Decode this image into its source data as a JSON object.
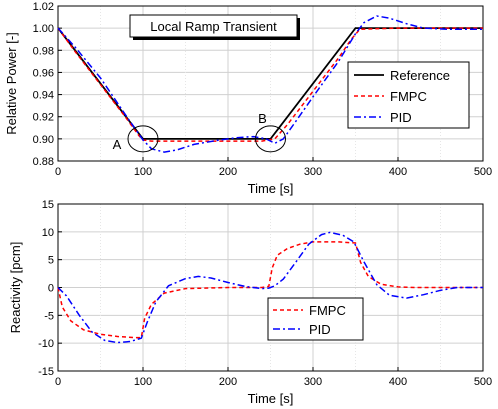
{
  "chart_data": [
    {
      "type": "line",
      "title": "Local Ramp Transient",
      "xlabel": "Time [s]",
      "ylabel": "Relative Power [-]",
      "xlim": [
        0,
        500
      ],
      "ylim": [
        0.88,
        1.02
      ],
      "xticks": [
        0,
        100,
        200,
        300,
        400,
        500
      ],
      "yticks": [
        0.88,
        0.9,
        0.92,
        0.94,
        0.96,
        0.98,
        1.0,
        1.02
      ],
      "grid": true,
      "legend": "right",
      "annotations": [
        {
          "text": "A",
          "x": 100,
          "y": 0.9
        },
        {
          "text": "B",
          "x": 250,
          "y": 0.9
        }
      ],
      "series": [
        {
          "name": "Reference",
          "color": "#000000",
          "style": "solid",
          "x": [
            0,
            100,
            250,
            350,
            500
          ],
          "y": [
            1.0,
            0.9,
            0.9,
            1.0,
            1.0
          ]
        },
        {
          "name": "FMPC",
          "color": "#ff0000",
          "style": "dashed",
          "x": [
            0,
            20,
            50,
            80,
            95,
            100,
            110,
            150,
            200,
            240,
            255,
            270,
            300,
            330,
            345,
            355,
            400,
            450,
            500
          ],
          "y": [
            1.0,
            0.979,
            0.949,
            0.919,
            0.903,
            0.899,
            0.898,
            0.898,
            0.898,
            0.898,
            0.9,
            0.913,
            0.943,
            0.973,
            0.99,
            0.999,
            1.0,
            1.0,
            1.0
          ]
        },
        {
          "name": "PID",
          "color": "#0000ff",
          "style": "dashdot",
          "x": [
            0,
            20,
            50,
            80,
            100,
            110,
            125,
            140,
            160,
            190,
            210,
            230,
            245,
            255,
            265,
            280,
            300,
            330,
            350,
            360,
            375,
            390,
            410,
            430,
            460,
            500
          ],
          "y": [
            1.0,
            0.983,
            0.955,
            0.921,
            0.899,
            0.891,
            0.888,
            0.89,
            0.895,
            0.899,
            0.901,
            0.902,
            0.9,
            0.896,
            0.9,
            0.916,
            0.938,
            0.97,
            0.995,
            1.005,
            1.011,
            1.009,
            1.004,
            1.0,
            0.999,
            0.999
          ]
        }
      ]
    },
    {
      "type": "line",
      "xlabel": "Time [s]",
      "ylabel": "Reactivity [pcm]",
      "xlim": [
        0,
        500
      ],
      "ylim": [
        -15,
        15
      ],
      "xticks": [
        0,
        100,
        200,
        300,
        400,
        500
      ],
      "yticks": [
        -15,
        -10,
        -5,
        0,
        5,
        10,
        15
      ],
      "grid": true,
      "legend": "bottom-center",
      "series": [
        {
          "name": "FMPC",
          "color": "#ff0000",
          "style": "dashed",
          "x": [
            0,
            5,
            15,
            30,
            50,
            70,
            90,
            98,
            102,
            110,
            125,
            150,
            200,
            240,
            248,
            252,
            258,
            270,
            285,
            300,
            330,
            350,
            356,
            365,
            380,
            400,
            420,
            450,
            500
          ],
          "y": [
            0,
            -3.5,
            -6,
            -7.6,
            -8.4,
            -8.8,
            -9.0,
            -9.0,
            -5.5,
            -3.0,
            -1.0,
            -0.2,
            0,
            0,
            0.2,
            3.5,
            5.8,
            7.0,
            7.8,
            8.2,
            8.2,
            8.0,
            4.5,
            2.0,
            0.6,
            0.1,
            0,
            0,
            0
          ]
        },
        {
          "name": "PID",
          "color": "#0000ff",
          "style": "dashdot",
          "x": [
            0,
            10,
            25,
            40,
            55,
            70,
            85,
            98,
            105,
            115,
            130,
            150,
            165,
            180,
            200,
            220,
            240,
            248,
            255,
            265,
            280,
            295,
            310,
            320,
            335,
            348,
            360,
            375,
            390,
            410,
            430,
            450,
            470,
            500
          ],
          "y": [
            0,
            -1.5,
            -5,
            -8,
            -9.5,
            -9.9,
            -9.7,
            -9.1,
            -6.2,
            -2.6,
            0.3,
            1.6,
            2.0,
            1.7,
            0.9,
            0.2,
            -0.2,
            -0.1,
            0.3,
            1.5,
            4.6,
            7.8,
            9.5,
            9.9,
            9.4,
            8.2,
            4.6,
            0.5,
            -1.4,
            -1.9,
            -1.3,
            -0.5,
            0,
            0
          ]
        }
      ]
    }
  ]
}
